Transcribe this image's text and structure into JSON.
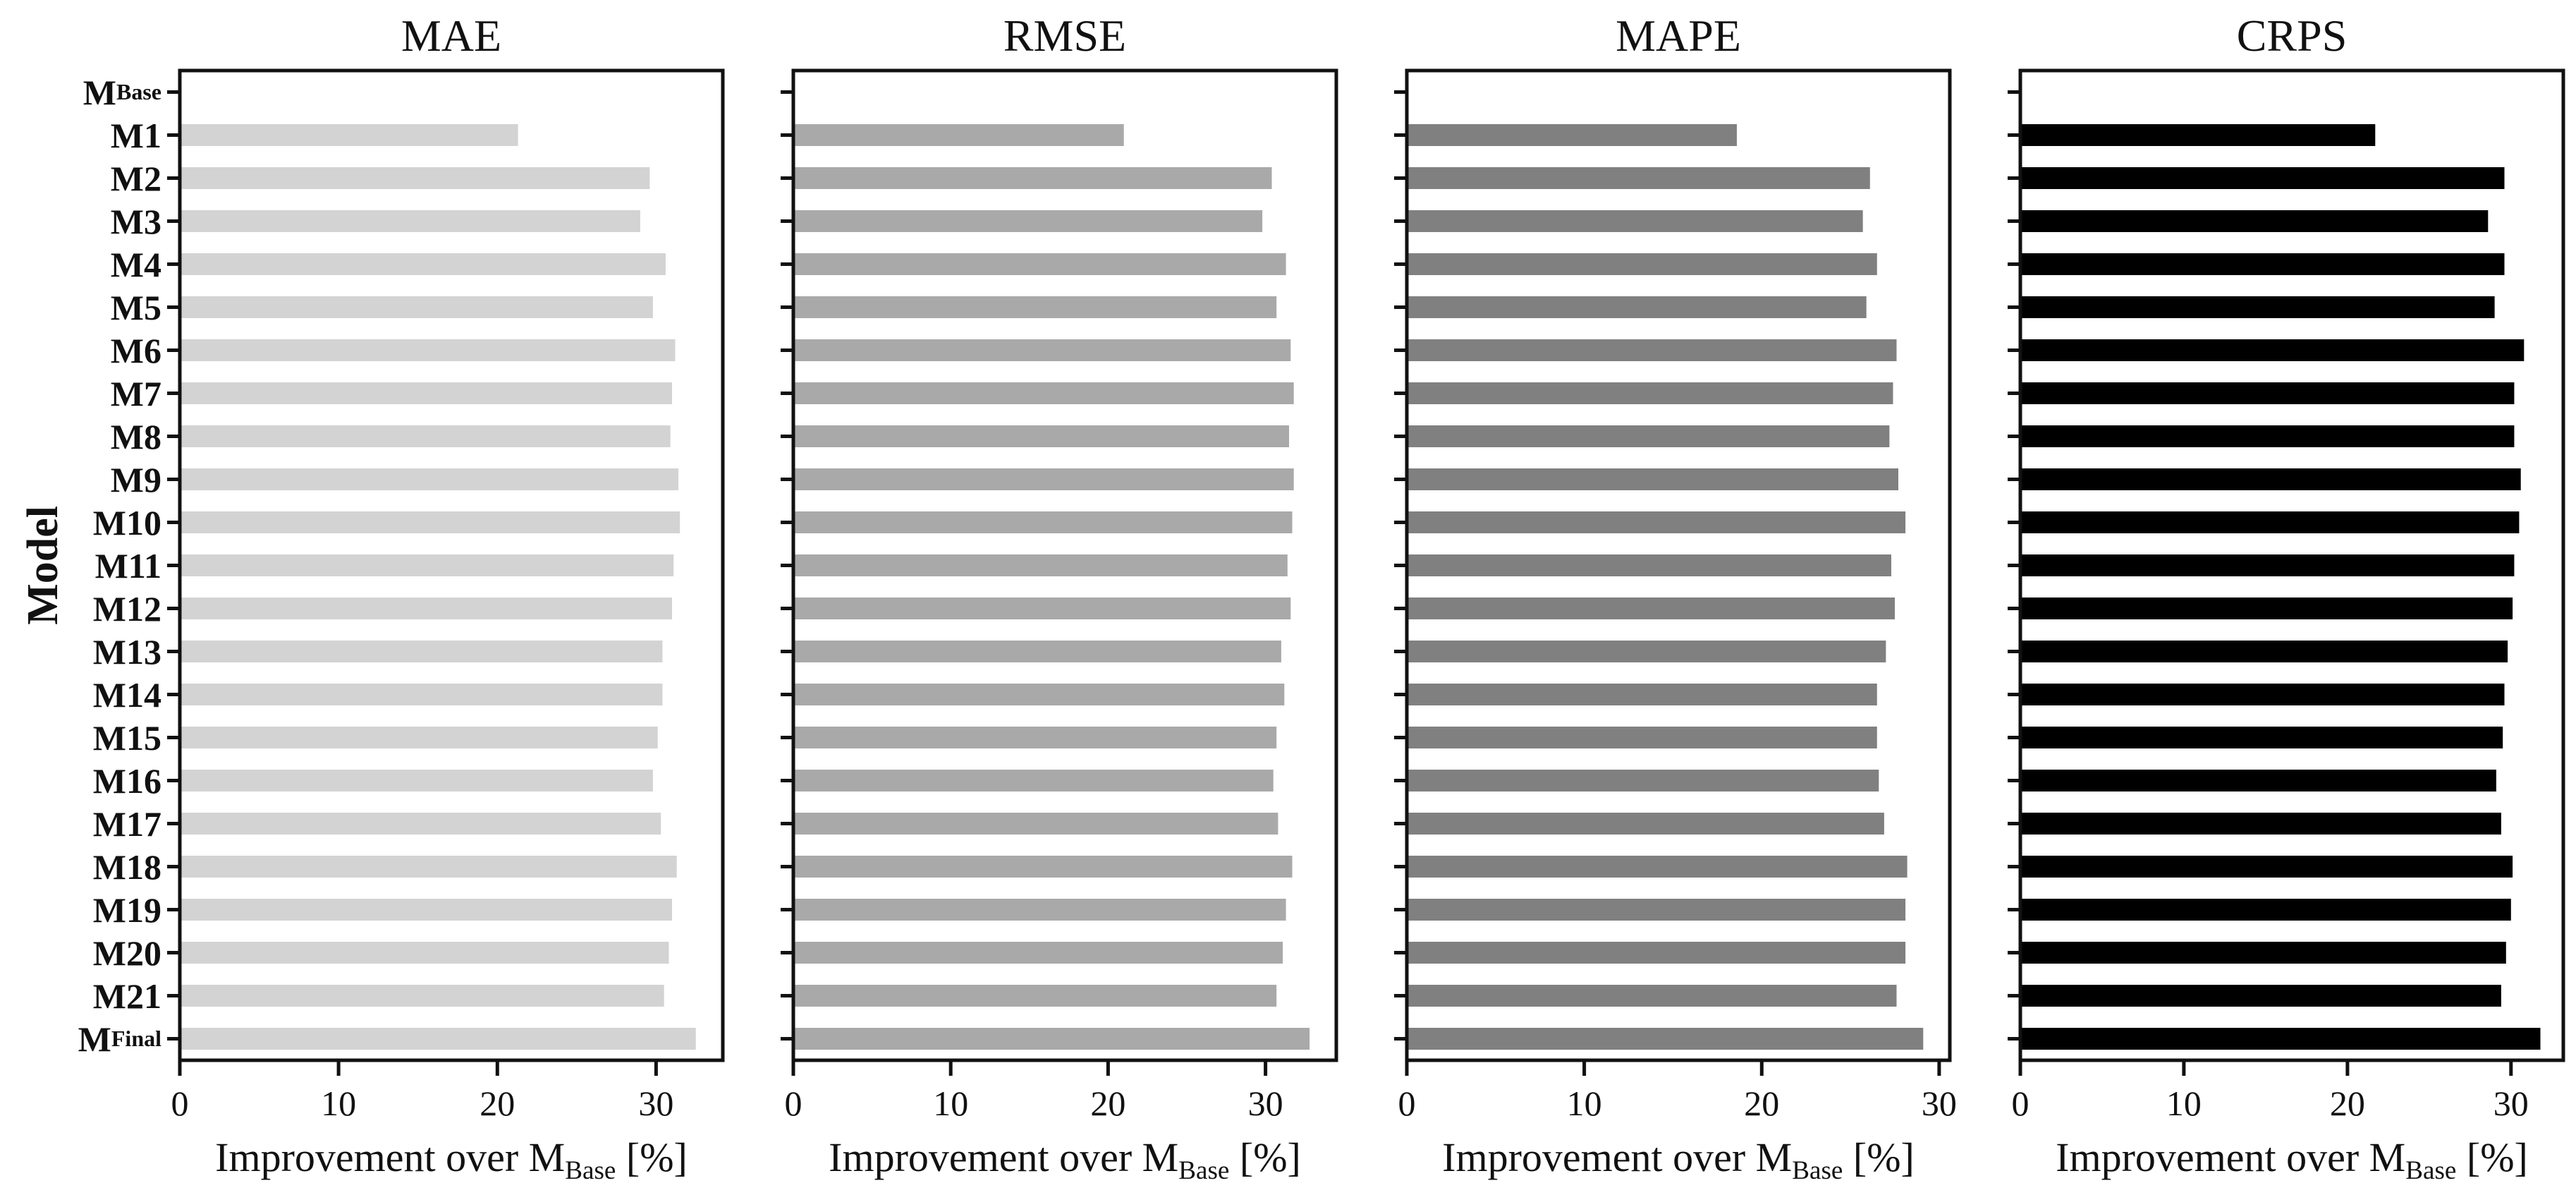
{
  "figure": {
    "background": "#ffffff",
    "axis_color": "#111111"
  },
  "labels": {
    "ylabel": "Model",
    "xlabel_pre": "Improvement over M",
    "xlabel_sub": "Base",
    "xlabel_post": " [%]"
  },
  "chart_data": {
    "type": "bar",
    "orientation": "horizontal",
    "grid": false,
    "legend": "none",
    "ylabel": "Model",
    "xlabel": "Improvement over M_Base [%]",
    "categories": [
      "M_Base",
      "M1",
      "M2",
      "M3",
      "M4",
      "M5",
      "M6",
      "M7",
      "M8",
      "M9",
      "M10",
      "M11",
      "M12",
      "M13",
      "M14",
      "M15",
      "M16",
      "M17",
      "M18",
      "M19",
      "M20",
      "M21",
      "M_Final"
    ],
    "xticks": [
      0,
      10,
      20,
      30
    ],
    "panels": [
      {
        "title": "MAE",
        "color": "#d3d3d3",
        "xlim": [
          0,
          34.2
        ],
        "values": [
          0,
          21.3,
          29.6,
          29.0,
          30.6,
          29.8,
          31.2,
          31.0,
          30.9,
          31.4,
          31.5,
          31.1,
          31.0,
          30.4,
          30.4,
          30.1,
          29.8,
          30.3,
          31.3,
          31.0,
          30.8,
          30.5,
          32.5
        ]
      },
      {
        "title": "RMSE",
        "color": "#a9a9a9",
        "xlim": [
          0,
          34.5
        ],
        "values": [
          0,
          21.0,
          30.4,
          29.8,
          31.3,
          30.7,
          31.6,
          31.8,
          31.5,
          31.8,
          31.7,
          31.4,
          31.6,
          31.0,
          31.2,
          30.7,
          30.5,
          30.8,
          31.7,
          31.3,
          31.1,
          30.7,
          32.8
        ]
      },
      {
        "title": "MAPE",
        "color": "#808080",
        "xlim": [
          0,
          30.6
        ],
        "values": [
          0,
          18.6,
          26.1,
          25.7,
          26.5,
          25.9,
          27.6,
          27.4,
          27.2,
          27.7,
          28.1,
          27.3,
          27.5,
          27.0,
          26.5,
          26.5,
          26.6,
          26.9,
          28.2,
          28.1,
          28.1,
          27.6,
          29.1
        ]
      },
      {
        "title": "CRPS",
        "color": "#000000",
        "xlim": [
          0,
          33.2
        ],
        "values": [
          0,
          21.7,
          29.6,
          28.6,
          29.6,
          29.0,
          30.8,
          30.2,
          30.2,
          30.6,
          30.5,
          30.2,
          30.1,
          29.8,
          29.6,
          29.5,
          29.1,
          29.4,
          30.1,
          30.0,
          29.7,
          29.4,
          31.8
        ]
      }
    ]
  }
}
